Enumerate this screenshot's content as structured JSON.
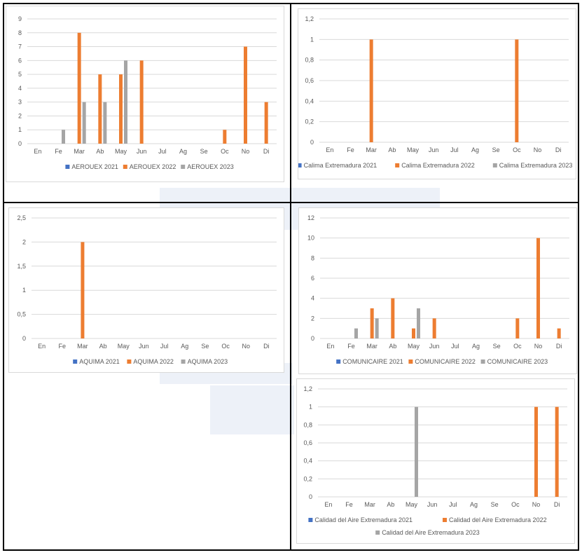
{
  "months": [
    "En",
    "Fe",
    "Mar",
    "Ab",
    "May",
    "Jun",
    "Jul",
    "Ag",
    "Se",
    "Oc",
    "No",
    "Di"
  ],
  "colors": {
    "s2021": "#4472c4",
    "s2022": "#ed7d31",
    "s2023": "#a5a5a5",
    "grid": "#d9d9d9"
  },
  "chart_data": [
    {
      "type": "bar",
      "categories": [
        "En",
        "Fe",
        "Mar",
        "Ab",
        "May",
        "Jun",
        "Jul",
        "Ag",
        "Se",
        "Oc",
        "No",
        "Di"
      ],
      "yticks": [
        "0",
        "1",
        "2",
        "3",
        "4",
        "5",
        "6",
        "7",
        "8",
        "9"
      ],
      "ylim": [
        0,
        9
      ],
      "legend_position": "bottom",
      "series": [
        {
          "name": "AEROUEX 2021",
          "values": [
            0,
            0,
            0,
            0,
            0,
            0,
            0,
            0,
            0,
            0,
            0,
            0
          ]
        },
        {
          "name": "AEROUEX 2022",
          "values": [
            0,
            0,
            8,
            5,
            5,
            6,
            0,
            0,
            0,
            1,
            7,
            3
          ]
        },
        {
          "name": "AEROUEX 2023",
          "values": [
            0,
            1,
            3,
            3,
            6,
            0,
            0,
            0,
            0,
            0,
            0,
            0
          ]
        }
      ]
    },
    {
      "type": "bar",
      "categories": [
        "En",
        "Fe",
        "Mar",
        "Ab",
        "May",
        "Jun",
        "Jul",
        "Ag",
        "Se",
        "Oc",
        "No",
        "Di"
      ],
      "yticks": [
        "0",
        "0,2",
        "0,4",
        "0,6",
        "0,8",
        "1",
        "1,2"
      ],
      "ylim": [
        0,
        1.2
      ],
      "legend_position": "bottom",
      "series": [
        {
          "name": "Calima Extremadura 2021",
          "values": [
            0,
            0,
            0,
            0,
            0,
            0,
            0,
            0,
            0,
            0,
            0,
            0
          ]
        },
        {
          "name": "Calima Extremadura 2022",
          "values": [
            0,
            0,
            1,
            0,
            0,
            0,
            0,
            0,
            0,
            1,
            0,
            0
          ]
        },
        {
          "name": "Calima Extremadura 2023",
          "values": [
            0,
            0,
            0,
            0,
            0,
            0,
            0,
            0,
            0,
            0,
            0,
            0
          ]
        }
      ]
    },
    {
      "type": "bar",
      "categories": [
        "En",
        "Fe",
        "Mar",
        "Ab",
        "May",
        "Jun",
        "Jul",
        "Ag",
        "Se",
        "Oc",
        "No",
        "Di"
      ],
      "yticks": [
        "0",
        "0,5",
        "1",
        "1,5",
        "2",
        "2,5"
      ],
      "ylim": [
        0,
        2.5
      ],
      "legend_position": "bottom",
      "series": [
        {
          "name": "AQUIMA 2021",
          "values": [
            0,
            0,
            0,
            0,
            0,
            0,
            0,
            0,
            0,
            0,
            0,
            0
          ]
        },
        {
          "name": "AQUIMA 2022",
          "values": [
            0,
            0,
            2,
            0,
            0,
            0,
            0,
            0,
            0,
            0,
            0,
            0
          ]
        },
        {
          "name": "AQUIMA 2023",
          "values": [
            0,
            0,
            0,
            0,
            0,
            0,
            0,
            0,
            0,
            0,
            0,
            0
          ]
        }
      ]
    },
    {
      "type": "bar",
      "categories": [
        "En",
        "Fe",
        "Mar",
        "Ab",
        "May",
        "Jun",
        "Jul",
        "Ag",
        "Se",
        "Oc",
        "No",
        "Di"
      ],
      "yticks": [
        "0",
        "2",
        "4",
        "6",
        "8",
        "10",
        "12"
      ],
      "ylim": [
        0,
        12
      ],
      "legend_position": "bottom",
      "series": [
        {
          "name": "COMUNICAIRE 2021",
          "values": [
            0,
            0,
            0,
            0,
            0,
            0,
            0,
            0,
            0,
            0,
            0,
            0
          ]
        },
        {
          "name": "COMUNICAIRE 2022",
          "values": [
            0,
            0,
            3,
            4,
            1,
            2,
            0,
            0,
            0,
            2,
            10,
            1
          ]
        },
        {
          "name": "COMUNICAIRE 2023",
          "values": [
            0,
            1,
            2,
            0,
            3,
            0,
            0,
            0,
            0,
            0,
            0,
            0
          ]
        }
      ]
    },
    {
      "type": "bar",
      "categories": [
        "En",
        "Fe",
        "Mar",
        "Ab",
        "May",
        "Jun",
        "Jul",
        "Ag",
        "Se",
        "Oc",
        "No",
        "Di"
      ],
      "yticks": [
        "0",
        "0,2",
        "0,4",
        "0,6",
        "0,8",
        "1",
        "1,2"
      ],
      "ylim": [
        0,
        1.2
      ],
      "legend_position": "bottom",
      "series": [
        {
          "name": "Calidad del Aire Extremadura 2021",
          "values": [
            0,
            0,
            0,
            0,
            0,
            0,
            0,
            0,
            0,
            0,
            0,
            0
          ]
        },
        {
          "name": "Calidad del Aire Extremadura 2022",
          "values": [
            0,
            0,
            0,
            0,
            0,
            0,
            0,
            0,
            0,
            0,
            1,
            1
          ]
        },
        {
          "name": "Calidad del Aire Extremadura 2023",
          "values": [
            0,
            0,
            0,
            0,
            1,
            0,
            0,
            0,
            0,
            0,
            0,
            0
          ]
        }
      ]
    }
  ]
}
